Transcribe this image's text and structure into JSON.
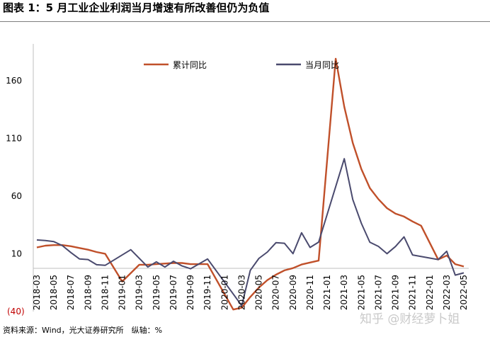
{
  "title": "图表 1：5 月工业企业利润当月增速有所改善但仍为负值",
  "source": "资料来源：Wind，光大证券研究所　纵轴：%",
  "watermark": "知乎 @财经萝卜姐",
  "chart_data": {
    "type": "line",
    "ylim": [
      -40,
      185
    ],
    "yticks": [
      -40,
      10,
      60,
      110,
      160
    ],
    "ytick_labels": [
      "(40)",
      "10",
      "60",
      "110",
      "160"
    ],
    "legend_position": "top",
    "grid": false,
    "x": [
      "2018-03",
      "2018-04",
      "2018-05",
      "2018-06",
      "2018-07",
      "2018-08",
      "2018-09",
      "2018-10",
      "2018-11",
      "2018-12",
      "2019-01",
      "2019-02",
      "2019-03",
      "2019-04",
      "2019-05",
      "2019-06",
      "2019-07",
      "2019-08",
      "2019-09",
      "2019-10",
      "2019-11",
      "2019-12",
      "2020-01",
      "2020-02",
      "2020-03",
      "2020-04",
      "2020-05",
      "2020-06",
      "2020-07",
      "2020-08",
      "2020-09",
      "2020-10",
      "2020-11",
      "2020-12",
      "2021-01",
      "2021-02",
      "2021-03",
      "2021-04",
      "2021-05",
      "2021-06",
      "2021-07",
      "2021-08",
      "2021-09",
      "2021-10",
      "2021-11",
      "2021-12",
      "2022-01",
      "2022-02",
      "2022-03",
      "2022-04",
      "2022-05"
    ],
    "xtick_labels": [
      "2018-03",
      "2018-05",
      "2018-07",
      "2018-09",
      "2018-11",
      "2019-01",
      "2019-03",
      "2019-05",
      "2019-07",
      "2019-09",
      "2019-11",
      "2020-01",
      "2020-03",
      "2020-05",
      "2020-07",
      "2020-09",
      "2020-11",
      "2021-01",
      "2021-03",
      "2021-05",
      "2021-07",
      "2021-09",
      "2021-11",
      "2022-01",
      "2022-03",
      "2022-05"
    ],
    "series": [
      {
        "name": "累计同比",
        "color": "#c0502a",
        "values": [
          15.5,
          17.0,
          17.5,
          17.5,
          16.5,
          15.0,
          13.5,
          11.5,
          10.0,
          null,
          -14.0,
          null,
          0.5,
          0.5,
          1.0,
          null,
          2.0,
          2.0,
          1.0,
          null,
          1.0,
          null,
          null,
          -38.3,
          -36.7,
          -27.4,
          -19.3,
          -12.8,
          -8.1,
          -4.4,
          -2.4,
          0.7,
          2.4,
          4.1,
          null,
          178.9,
          137.3,
          106.0,
          83.4,
          66.9,
          57.3,
          49.5,
          44.7,
          42.2,
          38.0,
          34.3,
          null,
          5.0,
          8.5,
          1.0,
          -1.0
        ]
      },
      {
        "name": "当月同比",
        "color": "#4a4a6e",
        "values": [
          22.0,
          21.5,
          20.5,
          17.0,
          11.0,
          5.5,
          5.0,
          0.5,
          0.0,
          null,
          null,
          13.5,
          null,
          -1.5,
          3.0,
          -1.5,
          3.5,
          -0.5,
          -3.0,
          null,
          5.5,
          null,
          null,
          null,
          -34.9,
          -4.3,
          6.0,
          11.5,
          19.6,
          19.1,
          10.1,
          28.2,
          15.5,
          20.1,
          null,
          null,
          92.3,
          57.0,
          36.4,
          20.0,
          16.4,
          10.1,
          16.3,
          24.6,
          9.0,
          null,
          null,
          5.0,
          12.2,
          -8.5,
          -6.5
        ]
      }
    ]
  }
}
